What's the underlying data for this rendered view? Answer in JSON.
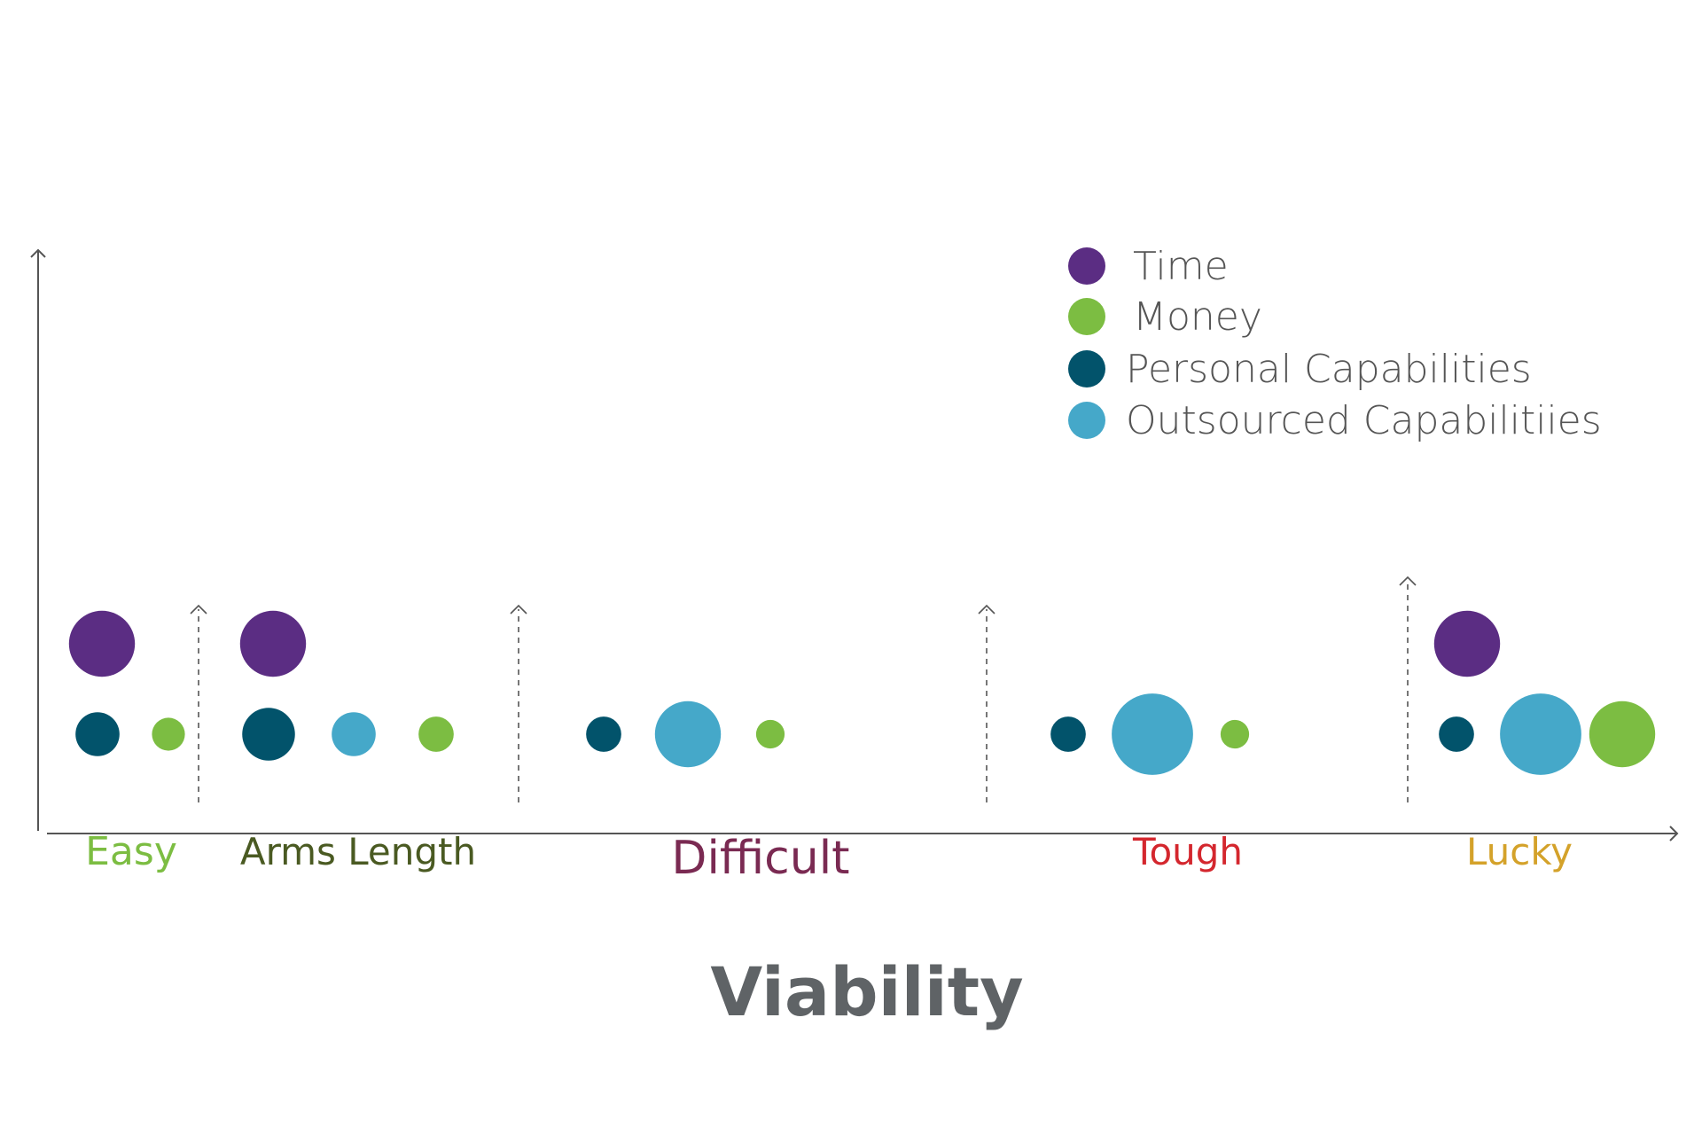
{
  "colors": {
    "Time": "#5b2d83",
    "Money": "#7cbd42",
    "Personal Capabilities": "#02536b",
    "Outsourced Capabilitiies": "#45a8c9",
    "axis": "#555555"
  },
  "legend": [
    "Time",
    "Money",
    "Personal Capabilities",
    "Outsourced Capabilitiies"
  ],
  "chart_data": {
    "type": "bubble",
    "title": "Viability",
    "legend_position": "top-right",
    "grid": false,
    "categories": [
      {
        "name": "Easy",
        "color": "#7cbd42",
        "bubbles": [
          {
            "series": "Time",
            "size": 3,
            "level": 2
          },
          {
            "series": "Personal Capabilities",
            "size": 2,
            "level": 1
          },
          {
            "series": "Money",
            "size": 1.5,
            "level": 1
          }
        ]
      },
      {
        "name": "Arms Length",
        "color": "#4a5a22",
        "bubbles": [
          {
            "series": "Time",
            "size": 3,
            "level": 2
          },
          {
            "series": "Personal Capabilities",
            "size": 2.4,
            "level": 1
          },
          {
            "series": "Outsourced Capabilitiies",
            "size": 2,
            "level": 1
          },
          {
            "series": "Money",
            "size": 1.6,
            "level": 1
          }
        ]
      },
      {
        "name": "Difficult",
        "color": "#7a2a52",
        "bubbles": [
          {
            "series": "Personal Capabilities",
            "size": 1.6,
            "level": 1
          },
          {
            "series": "Outsourced Capabilitiies",
            "size": 3,
            "level": 1
          },
          {
            "series": "Money",
            "size": 1.3,
            "level": 1
          }
        ]
      },
      {
        "name": "Tough",
        "color": "#d4272e",
        "bubbles": [
          {
            "series": "Personal Capabilities",
            "size": 1.6,
            "level": 1
          },
          {
            "series": "Outsourced Capabilitiies",
            "size": 3.7,
            "level": 1
          },
          {
            "series": "Money",
            "size": 1.3,
            "level": 1
          }
        ]
      },
      {
        "name": "Lucky",
        "color": "#d4a22a",
        "bubbles": [
          {
            "series": "Time",
            "size": 3,
            "level": 2
          },
          {
            "series": "Personal Capabilities",
            "size": 1.6,
            "level": 1
          },
          {
            "series": "Outsourced Capabilitiies",
            "size": 3.7,
            "level": 1
          },
          {
            "series": "Money",
            "size": 3,
            "level": 1
          }
        ]
      }
    ]
  }
}
